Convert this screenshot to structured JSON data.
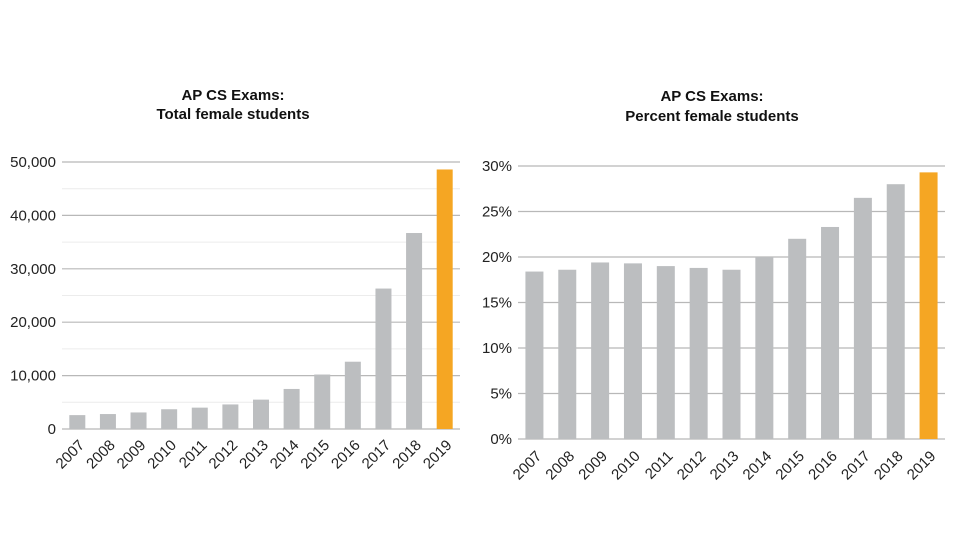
{
  "colors": {
    "bar_default": "#bcbec0",
    "bar_highlight": "#f5a623",
    "gridline_major": "#b8b8b8",
    "gridline_minor": "#ececec",
    "text": "#222222"
  },
  "chart_data": [
    {
      "type": "bar",
      "title_line1": "AP CS Exams:",
      "title_line2": "Total female students",
      "xlabel": "",
      "ylabel": "",
      "categories": [
        "2007",
        "2008",
        "2009",
        "2010",
        "2011",
        "2012",
        "2013",
        "2014",
        "2015",
        "2016",
        "2017",
        "2018",
        "2019"
      ],
      "values": [
        2600,
        2800,
        3100,
        3700,
        4000,
        4600,
        5500,
        7500,
        10200,
        12600,
        26300,
        36700,
        48600
      ],
      "highlight_index": 12,
      "ylim": [
        0,
        50000
      ],
      "yticks": [
        0,
        10000,
        20000,
        30000,
        40000,
        50000
      ],
      "ytick_labels": [
        "0",
        "10,000",
        "20,000",
        "30,000",
        "40,000",
        "50,000"
      ],
      "grid": true
    },
    {
      "type": "bar",
      "title_line1": "AP CS Exams:",
      "title_line2": "Percent female students",
      "xlabel": "",
      "ylabel": "",
      "categories": [
        "2007",
        "2008",
        "2009",
        "2010",
        "2011",
        "2012",
        "2013",
        "2014",
        "2015",
        "2016",
        "2017",
        "2018",
        "2019"
      ],
      "values": [
        18.4,
        18.6,
        19.4,
        19.3,
        19.0,
        18.8,
        18.6,
        20.0,
        22.0,
        23.3,
        26.5,
        28.0,
        29.3
      ],
      "highlight_index": 12,
      "ylim": [
        0,
        30
      ],
      "yticks": [
        0,
        5,
        10,
        15,
        20,
        25,
        30
      ],
      "ytick_labels": [
        "0%",
        "5%",
        "10%",
        "15%",
        "20%",
        "25%",
        "30%"
      ],
      "grid": true
    }
  ]
}
